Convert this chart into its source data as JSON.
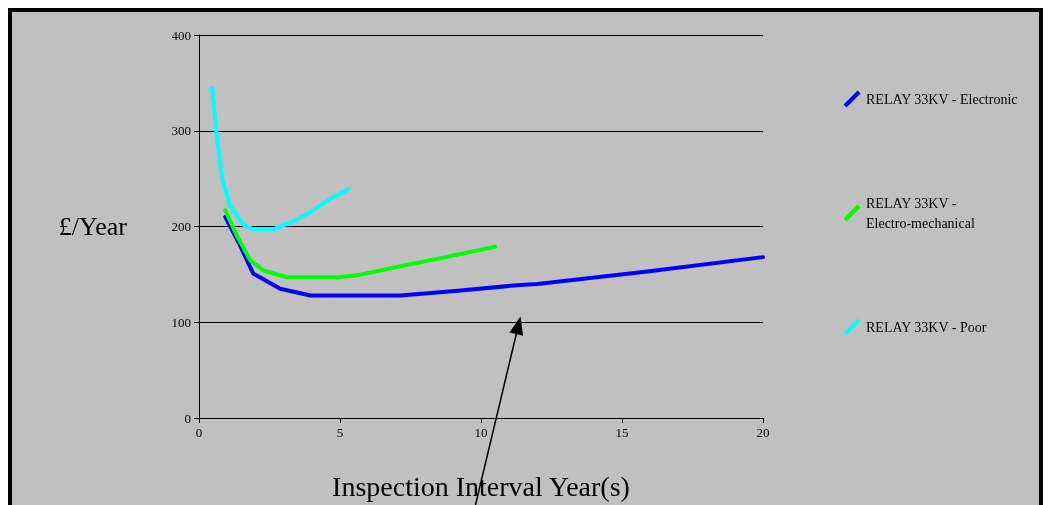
{
  "chart_data": {
    "type": "line",
    "xlabel": "Inspection Interval Year(s)",
    "ylabel": "£/Year",
    "xlim": [
      0,
      20
    ],
    "xticks": [
      0,
      5,
      10,
      15,
      20
    ],
    "ylim": [
      0,
      400
    ],
    "yticks": [
      0,
      100,
      200,
      300,
      400
    ],
    "grid": "y",
    "legend": "right",
    "marker": "none",
    "line_style": "solid",
    "series": [
      {
        "name": "RELAY 33KV - Electronic",
        "color": "#0000ff",
        "x": [
          0.93,
          1.46,
          1.92,
          2.88,
          3.95,
          7.15,
          9.18,
          11.4,
          12,
          15.9,
          20
        ],
        "values": [
          210,
          180,
          151,
          135,
          128,
          128,
          133,
          139,
          140,
          153,
          168
        ]
      },
      {
        "name": "RELAY 33KV - Electro-mechanical",
        "color": "#00ff00",
        "x": [
          0.93,
          1.35,
          1.81,
          2.28,
          3.13,
          4.91,
          5.6,
          7.05,
          8.58,
          10.5
        ],
        "values": [
          217,
          190,
          165,
          154,
          147,
          147,
          149,
          158,
          167,
          179
        ]
      },
      {
        "name": "RELAY 33KV - Poor",
        "color": "#00ffff",
        "x": [
          0.46,
          0.64,
          0.82,
          1.1,
          1.57,
          1.92,
          2.63,
          3.24,
          3.95,
          4.66,
          5.3
        ],
        "values": [
          345,
          292,
          250,
          222,
          202,
          197,
          197,
          204,
          215,
          229,
          239
        ]
      }
    ]
  }
}
